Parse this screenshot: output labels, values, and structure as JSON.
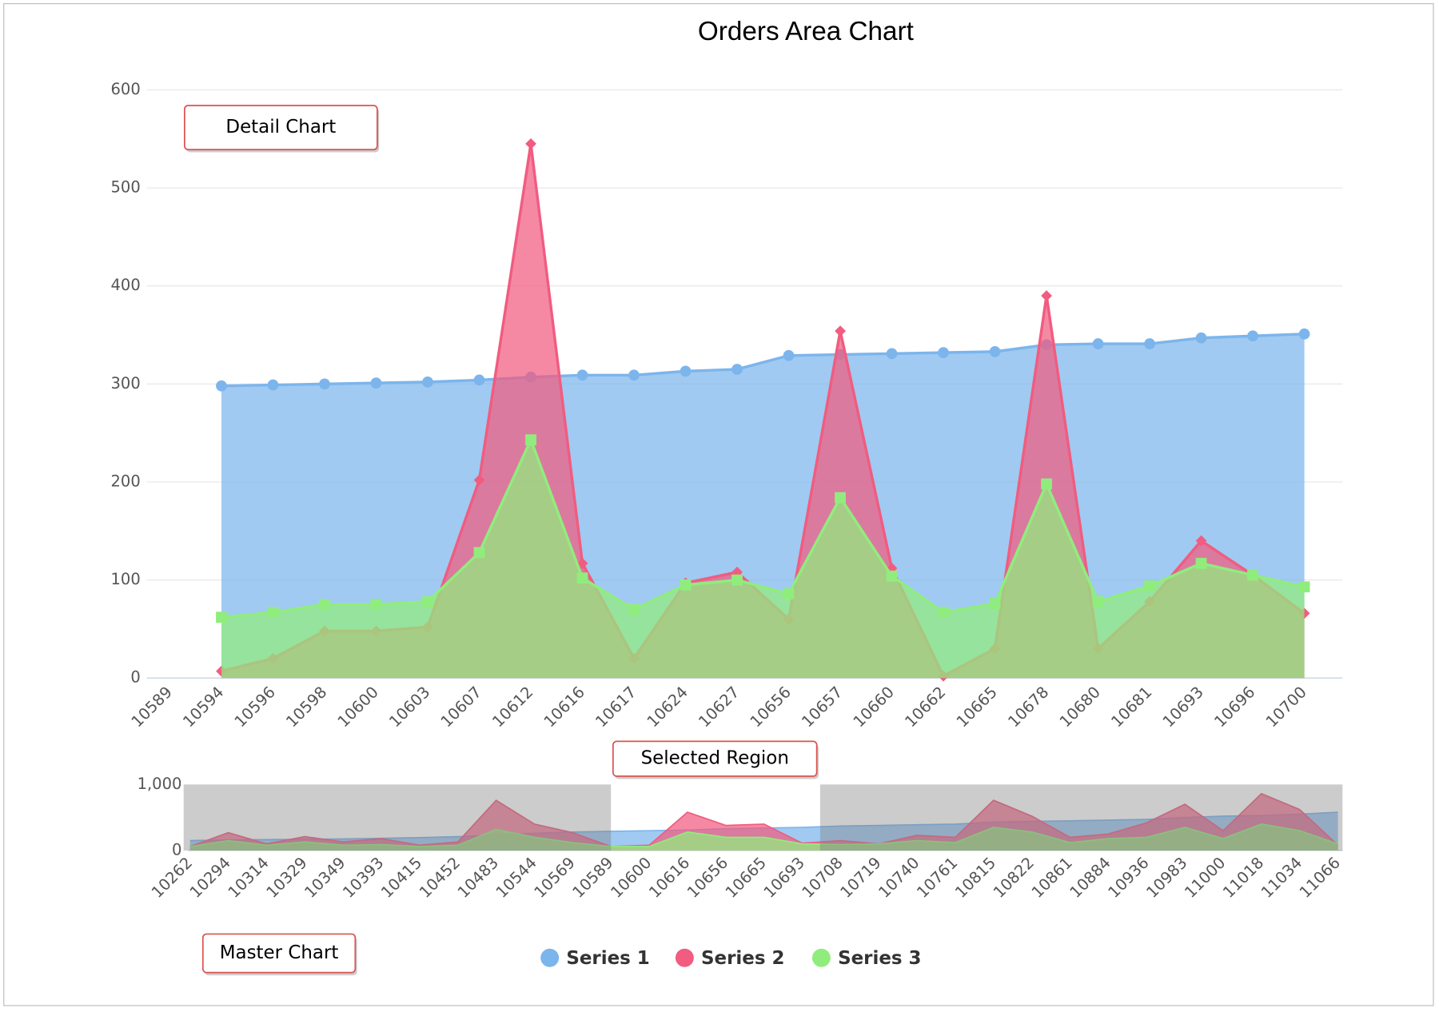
{
  "chart_data": [
    {
      "type": "area",
      "title": "Orders Area Chart",
      "annotation": "Detail Chart",
      "categories": [
        "10589",
        "10594",
        "10596",
        "10598",
        "10600",
        "10603",
        "10607",
        "10612",
        "10616",
        "10617",
        "10624",
        "10627",
        "10656",
        "10657",
        "10660",
        "10662",
        "10665",
        "10678",
        "10680",
        "10681",
        "10693",
        "10696",
        "10700"
      ],
      "series": [
        {
          "name": "Series 1",
          "color": "#7cb5ec",
          "values": [
            null,
            298,
            299,
            300,
            301,
            302,
            304,
            307,
            309,
            309,
            313,
            315,
            329,
            330,
            331,
            332,
            333,
            340,
            341,
            341,
            347,
            349,
            351
          ]
        },
        {
          "name": "Series 2",
          "color": "#f15c80",
          "values": [
            null,
            7,
            20,
            48,
            48,
            52,
            202,
            545,
            117,
            20,
            97,
            108,
            60,
            354,
            112,
            2,
            30,
            390,
            30,
            78,
            140,
            105,
            66
          ]
        },
        {
          "name": "Series 3",
          "color": "#90ed7d",
          "values": [
            null,
            62,
            67,
            75,
            75,
            78,
            128,
            243,
            102,
            70,
            95,
            100,
            86,
            184,
            104,
            67,
            76,
            198,
            78,
            94,
            117,
            105,
            93
          ]
        }
      ],
      "ylim": [
        0,
        600
      ],
      "yticks": [
        0,
        100,
        200,
        300,
        400,
        500,
        600
      ],
      "grid": true
    },
    {
      "type": "area",
      "annotation": "Master Chart",
      "selection": {
        "label": "Selected Region",
        "from": "10589",
        "to": "10700"
      },
      "categories": [
        "10262",
        "10294",
        "10314",
        "10329",
        "10349",
        "10393",
        "10415",
        "10452",
        "10483",
        "10544",
        "10569",
        "10589",
        "10600",
        "10616",
        "10656",
        "10665",
        "10693",
        "10708",
        "10719",
        "10740",
        "10761",
        "10815",
        "10822",
        "10861",
        "10884",
        "10936",
        "10983",
        "11000",
        "11018",
        "11034",
        "11066"
      ],
      "series": [
        {
          "color": "#7cb5ec",
          "values": [
            150,
            160,
            165,
            170,
            175,
            185,
            195,
            210,
            230,
            260,
            280,
            290,
            300,
            310,
            330,
            340,
            350,
            370,
            380,
            390,
            400,
            430,
            440,
            450,
            460,
            470,
            500,
            520,
            530,
            550,
            580
          ]
        },
        {
          "color": "#f15c80",
          "values": [
            60,
            270,
            100,
            210,
            130,
            180,
            80,
            130,
            760,
            400,
            270,
            60,
            80,
            580,
            380,
            400,
            110,
            150,
            100,
            230,
            200,
            760,
            520,
            200,
            250,
            420,
            700,
            300,
            860,
            620,
            80
          ]
        },
        {
          "color": "#90ed7d",
          "values": [
            60,
            150,
            80,
            130,
            80,
            90,
            60,
            80,
            320,
            200,
            120,
            60,
            60,
            280,
            200,
            200,
            100,
            90,
            100,
            150,
            120,
            350,
            280,
            120,
            180,
            200,
            350,
            180,
            400,
            300,
            100
          ]
        }
      ],
      "ylim": [
        0,
        1000
      ],
      "yticks": [
        0,
        {
          "value": 1000,
          "label": "1,000"
        }
      ],
      "grid": false
    }
  ]
}
